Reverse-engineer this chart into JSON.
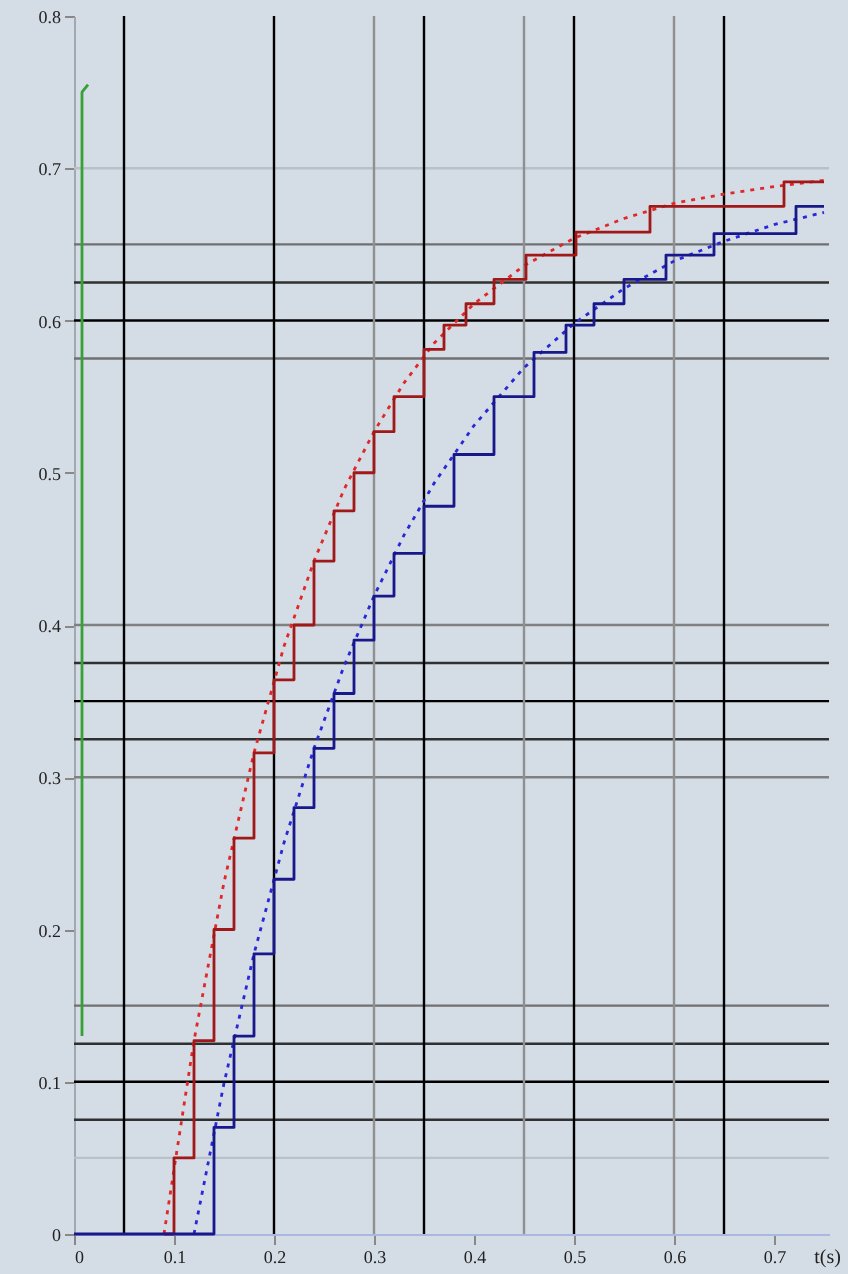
{
  "chart_data": {
    "type": "line",
    "xlabel": "t(s)",
    "xlim": [
      0,
      0.755
    ],
    "ylim": [
      0,
      0.8
    ],
    "xticks": [
      0,
      0.1,
      0.2,
      0.3,
      0.4,
      0.5,
      0.6,
      0.7
    ],
    "yticks": [
      0,
      0.1,
      0.2,
      0.3,
      0.4,
      0.5,
      0.6,
      0.7,
      0.8
    ],
    "series": [
      {
        "type": "line",
        "color": "#e02828",
        "line_style": "dotted",
        "x": [
          0.09,
          0.12,
          0.15,
          0.18,
          0.21,
          0.24,
          0.27,
          0.3,
          0.33,
          0.36,
          0.4,
          0.45,
          0.5,
          0.55,
          0.6,
          0.65,
          0.7,
          0.75
        ],
        "values": [
          0,
          0.127,
          0.231,
          0.316,
          0.386,
          0.442,
          0.489,
          0.527,
          0.559,
          0.585,
          0.611,
          0.636,
          0.654,
          0.667,
          0.677,
          0.683,
          0.688,
          0.692
        ]
      },
      {
        "type": "step",
        "color": "#a01818",
        "x": [
          0.09,
          0.1,
          0.12,
          0.14,
          0.16,
          0.18,
          0.2,
          0.22,
          0.24,
          0.26,
          0.28,
          0.3,
          0.32,
          0.35,
          0.37,
          0.392,
          0.42,
          0.452,
          0.502,
          0.576,
          0.71,
          0.75
        ],
        "values": [
          0,
          0.05,
          0.127,
          0.2,
          0.26,
          0.316,
          0.364,
          0.4,
          0.442,
          0.475,
          0.5,
          0.527,
          0.55,
          0.581,
          0.597,
          0.611,
          0.627,
          0.643,
          0.658,
          0.675,
          0.691,
          0.691
        ]
      },
      {
        "type": "line",
        "color": "#2828d8",
        "line_style": "dotted",
        "x": [
          0.12,
          0.15,
          0.18,
          0.21,
          0.24,
          0.27,
          0.3,
          0.33,
          0.36,
          0.4,
          0.45,
          0.5,
          0.55,
          0.6,
          0.65,
          0.7,
          0.75
        ],
        "values": [
          0,
          0.099,
          0.184,
          0.257,
          0.319,
          0.373,
          0.419,
          0.459,
          0.493,
          0.531,
          0.569,
          0.598,
          0.621,
          0.639,
          0.652,
          0.663,
          0.671
        ]
      },
      {
        "type": "step",
        "color": "#18188a",
        "x": [
          0,
          0.12,
          0.14,
          0.16,
          0.18,
          0.2,
          0.22,
          0.24,
          0.26,
          0.28,
          0.3,
          0.32,
          0.35,
          0.38,
          0.42,
          0.46,
          0.492,
          0.52,
          0.55,
          0.592,
          0.64,
          0.722,
          0.75
        ],
        "values": [
          0,
          0,
          0.07,
          0.13,
          0.184,
          0.233,
          0.28,
          0.319,
          0.355,
          0.39,
          0.419,
          0.447,
          0.478,
          0.512,
          0.55,
          0.579,
          0.597,
          0.611,
          0.627,
          0.643,
          0.657,
          0.675,
          0.675
        ]
      },
      {
        "type": "line",
        "color": "#38a038",
        "x": [
          0.008,
          0.008,
          0.014
        ],
        "values": [
          0.13,
          0.75,
          0.755
        ]
      }
    ],
    "ref_lines": [
      {
        "axis": "y",
        "value": 0.7,
        "color": "#b8c0c8"
      },
      {
        "axis": "y",
        "value": 0.65,
        "color": "#707070"
      },
      {
        "axis": "y",
        "value": 0.625,
        "color": "#303030"
      },
      {
        "axis": "y",
        "value": 0.6,
        "color": "#000000"
      },
      {
        "axis": "y",
        "value": 0.575,
        "color": "#707070"
      },
      {
        "axis": "y",
        "value": 0.4,
        "color": "#808080"
      },
      {
        "axis": "y",
        "value": 0.375,
        "color": "#303030"
      },
      {
        "axis": "y",
        "value": 0.35,
        "color": "#000000"
      },
      {
        "axis": "y",
        "value": 0.325,
        "color": "#303030"
      },
      {
        "axis": "y",
        "value": 0.3,
        "color": "#808080"
      },
      {
        "axis": "y",
        "value": 0.15,
        "color": "#707070"
      },
      {
        "axis": "y",
        "value": 0.125,
        "color": "#303030"
      },
      {
        "axis": "y",
        "value": 0.1,
        "color": "#000000"
      },
      {
        "axis": "y",
        "value": 0.075,
        "color": "#303030"
      },
      {
        "axis": "y",
        "value": 0.05,
        "color": "#b8c0c8"
      },
      {
        "axis": "x",
        "value": 0.05,
        "color": "#000000"
      },
      {
        "axis": "x",
        "value": 0.2,
        "color": "#000000"
      },
      {
        "axis": "x",
        "value": 0.3,
        "color": "#909090"
      },
      {
        "axis": "x",
        "value": 0.35,
        "color": "#000000"
      },
      {
        "axis": "x",
        "value": 0.45,
        "color": "#909090"
      },
      {
        "axis": "x",
        "value": 0.5,
        "color": "#000000"
      },
      {
        "axis": "x",
        "value": 0.6,
        "color": "#909090"
      },
      {
        "axis": "x",
        "value": 0.65,
        "color": "#000000"
      }
    ]
  }
}
